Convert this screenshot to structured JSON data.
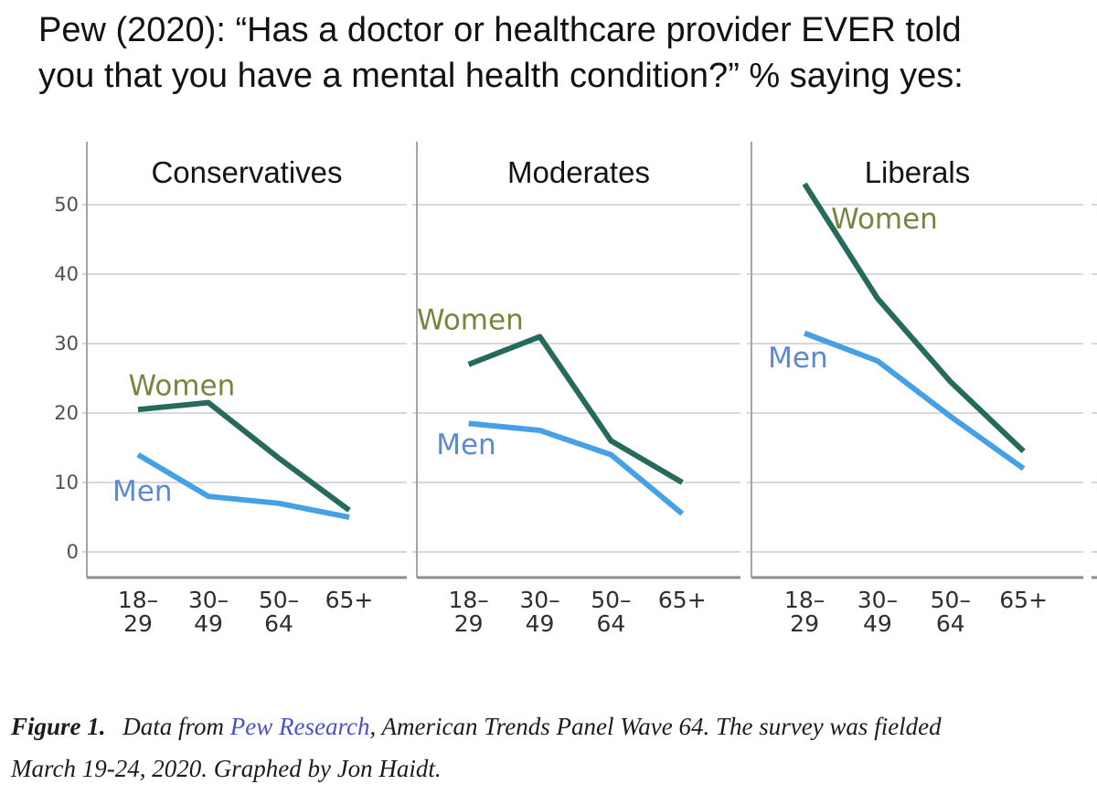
{
  "title": {
    "line1": "Pew (2020): “Has a doctor or healthcare provider EVER told",
    "line2": "you that you have a mental health condition?” % saying yes:"
  },
  "chart_data": {
    "type": "line",
    "categories": [
      "18–29",
      "30–49",
      "50–64",
      "65+"
    ],
    "category_labels": [
      [
        "18–",
        "29"
      ],
      [
        "30–",
        "49"
      ],
      [
        "50–",
        "64"
      ],
      [
        "65+",
        ""
      ]
    ],
    "yticks": [
      0,
      10,
      20,
      30,
      40,
      50
    ],
    "ylim": [
      0,
      58
    ],
    "grid": true,
    "legend_position": "inline-labels",
    "series_colors": {
      "Women": "#266a5b",
      "Men": "#45a1e3"
    },
    "label_colors": {
      "Women": "#788440",
      "Men": "#5e88cf"
    },
    "colors": {
      "grid": "#cbcbcb",
      "y_axis": "#a5a5a5",
      "x_axis": "#8d8d8d",
      "panel_title": "#141414",
      "x_tick": "#2f2f2f",
      "y_tick": "#4f4f4f"
    },
    "panels": [
      {
        "title": "Conservatives",
        "series": [
          {
            "name": "Women",
            "values": [
              20.5,
              21.5,
              13.5,
              6
            ]
          },
          {
            "name": "Men",
            "values": [
              14,
              8,
              7,
              5
            ]
          }
        ],
        "labels": [
          {
            "text": "Women",
            "fx": 0.13,
            "value": 24
          },
          {
            "text": "Men",
            "fx": 0.08,
            "value": 8.8
          }
        ]
      },
      {
        "title": "Moderates",
        "series": [
          {
            "name": "Women",
            "values": [
              27,
              31,
              16,
              10
            ]
          },
          {
            "name": "Men",
            "values": [
              18.5,
              17.5,
              14,
              5.5
            ]
          }
        ],
        "labels": [
          {
            "text": "Women",
            "fx": 0.0,
            "value": 33.5
          },
          {
            "text": "Men",
            "fx": 0.06,
            "value": 15.5
          }
        ]
      },
      {
        "title": "Liberals",
        "series": [
          {
            "name": "Women",
            "values": [
              53,
              36.5,
              24.5,
              14.5
            ]
          },
          {
            "name": "Men",
            "values": [
              31.5,
              27.5,
              19.5,
              12
            ]
          }
        ],
        "labels": [
          {
            "text": "Women",
            "fx": 0.24,
            "value": 48
          },
          {
            "text": "Men",
            "fx": 0.05,
            "value": 28
          }
        ]
      }
    ]
  },
  "caption": {
    "figure_label": "Figure 1.",
    "pre_link": " Data from ",
    "link_text": "Pew Research",
    "link_color": "#4753c6",
    "post_link_line1": ", American Trends Panel Wave 64. The survey was fielded",
    "line2": "March 19-24, 2020. Graphed by Jon Haidt."
  }
}
